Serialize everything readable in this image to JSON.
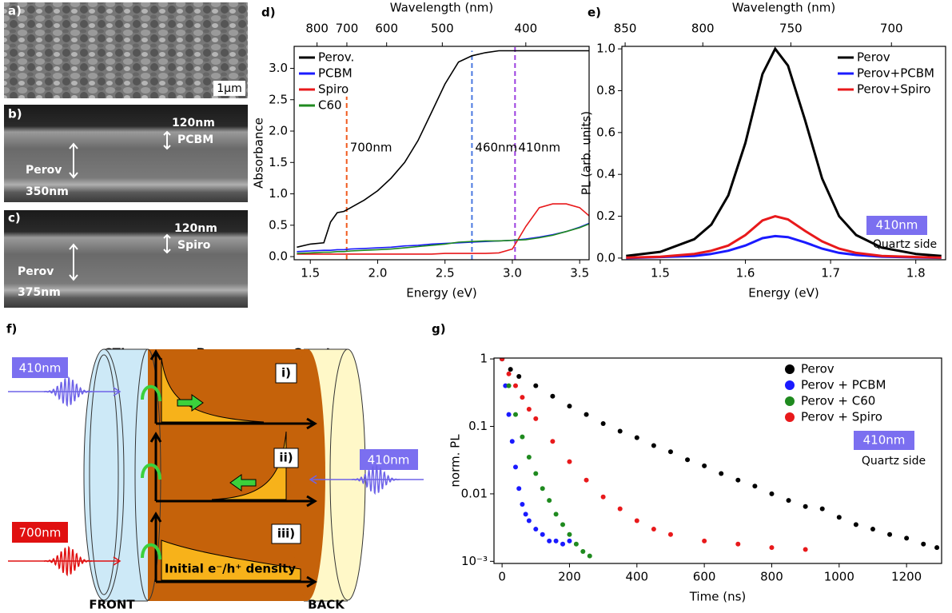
{
  "images": [
    {
      "label": "a)",
      "texts": [
        "1μm"
      ]
    },
    {
      "label": "b)",
      "texts": [
        "120nm",
        "PCBM",
        "Perov",
        "350nm"
      ]
    },
    {
      "label": "c)",
      "texts": [
        "120nm",
        "Spiro",
        "Perov",
        "375nm"
      ]
    }
  ],
  "diagram": {
    "label": "f)",
    "ctl": "CTL",
    "perov": "Perov",
    "quartz": "Quartz",
    "front": "FRONT",
    "back": "BACK",
    "pulses": [
      "410nm",
      "410nm",
      "700nm"
    ],
    "regimes": [
      "i)",
      "ii)",
      "iii)"
    ],
    "density": "Initial e⁻/h⁺ density"
  },
  "chart_data": [
    {
      "type": "line",
      "label": "d)",
      "xlabel": "Energy (eV)",
      "ylabel": "Absorbance",
      "x2label": "Wavelength (nm)",
      "xlim": [
        1.38,
        3.57
      ],
      "ylim": [
        -0.05,
        3.35
      ],
      "xticks": [
        {
          "value": 1.5,
          "label": "1.5"
        },
        {
          "value": 2,
          "label": "2.0"
        },
        2.5,
        {
          "value": 3,
          "label": "3.0"
        },
        3.5
      ],
      "yticks": [
        {
          "value": 0,
          "label": "0.0"
        },
        0.5,
        {
          "value": 1,
          "label": "1.0"
        },
        1.5,
        {
          "value": 2,
          "label": "2.0"
        },
        2.5,
        {
          "value": 3,
          "label": "3.0"
        }
      ],
      "x2ticks": [
        800,
        700,
        600,
        500,
        400
      ],
      "legend": "upper left",
      "x": [
        1.4,
        1.5,
        1.6,
        1.65,
        1.7,
        1.75,
        1.8,
        1.9,
        2.0,
        2.1,
        2.2,
        2.3,
        2.4,
        2.5,
        2.6,
        2.7,
        2.8,
        2.9,
        3.0,
        3.1,
        3.2,
        3.3,
        3.4,
        3.5,
        3.57
      ],
      "series": [
        {
          "name": "Perov.",
          "color": "#000000",
          "values": [
            0.15,
            0.2,
            0.22,
            0.55,
            0.7,
            0.72,
            0.78,
            0.9,
            1.05,
            1.25,
            1.5,
            1.85,
            2.3,
            2.75,
            3.1,
            3.2,
            3.25,
            3.28,
            3.28,
            3.28,
            3.28,
            3.28,
            3.28,
            3.28,
            3.28
          ]
        },
        {
          "name": "PCBM",
          "color": "#1a1aff",
          "values": [
            0.08,
            0.09,
            0.1,
            0.1,
            0.11,
            0.11,
            0.12,
            0.13,
            0.14,
            0.15,
            0.17,
            0.18,
            0.2,
            0.21,
            0.22,
            0.23,
            0.24,
            0.25,
            0.26,
            0.28,
            0.31,
            0.35,
            0.4,
            0.47,
            0.53
          ]
        },
        {
          "name": "Spiro",
          "color": "#e8191b",
          "values": [
            0.04,
            0.04,
            0.04,
            0.04,
            0.04,
            0.04,
            0.04,
            0.04,
            0.04,
            0.04,
            0.04,
            0.04,
            0.04,
            0.05,
            0.05,
            0.05,
            0.05,
            0.06,
            0.12,
            0.48,
            0.78,
            0.84,
            0.84,
            0.78,
            0.65
          ]
        },
        {
          "name": "C60",
          "color": "#1f8a1f",
          "values": [
            0.05,
            0.06,
            0.07,
            0.07,
            0.08,
            0.08,
            0.09,
            0.1,
            0.11,
            0.12,
            0.14,
            0.16,
            0.18,
            0.2,
            0.23,
            0.24,
            0.25,
            0.25,
            0.26,
            0.27,
            0.3,
            0.34,
            0.4,
            0.46,
            0.52
          ]
        }
      ],
      "vlines": [
        {
          "x": 1.77,
          "top": 2.55,
          "label": "700nm",
          "color": "#f05a1e"
        },
        {
          "x": 2.7,
          "top": 3.28,
          "label": "460nm",
          "color": "#4a78e0"
        },
        {
          "x": 3.02,
          "top": 3.35,
          "label": "410nm",
          "color": "#9b3fe0"
        }
      ]
    },
    {
      "type": "line",
      "label": "e)",
      "xlabel": "Energy (eV)",
      "ylabel": "PL (arb. units)",
      "x2label": "Wavelength (nm)",
      "xlim": [
        1.455,
        1.835
      ],
      "ylim": [
        -0.008,
        1.012
      ],
      "xticks": [
        1.5,
        1.6,
        1.7,
        1.8
      ],
      "yticks": [
        {
          "value": 0,
          "label": "0.0"
        },
        0.2,
        0.4,
        0.6,
        0.8,
        {
          "value": 1,
          "label": "1.0"
        }
      ],
      "x2ticks": [
        850,
        800,
        750,
        700
      ],
      "legend": "upper right",
      "x": [
        1.46,
        1.5,
        1.54,
        1.56,
        1.58,
        1.6,
        1.62,
        1.635,
        1.65,
        1.67,
        1.69,
        1.71,
        1.73,
        1.76,
        1.8,
        1.83
      ],
      "series": [
        {
          "name": "Perov",
          "color": "#000000",
          "values": [
            0.01,
            0.03,
            0.09,
            0.16,
            0.3,
            0.55,
            0.88,
            1.0,
            0.92,
            0.66,
            0.38,
            0.2,
            0.11,
            0.05,
            0.02,
            0.01
          ]
        },
        {
          "name": "Perov+PCBM",
          "color": "#1a1aff",
          "values": [
            0.0,
            0.005,
            0.01,
            0.02,
            0.035,
            0.06,
            0.095,
            0.105,
            0.1,
            0.075,
            0.045,
            0.025,
            0.015,
            0.007,
            0.003,
            0.001
          ]
        },
        {
          "name": "Perov+Spiro",
          "color": "#e8191b",
          "values": [
            0.002,
            0.006,
            0.02,
            0.035,
            0.06,
            0.11,
            0.18,
            0.2,
            0.185,
            0.13,
            0.08,
            0.045,
            0.025,
            0.01,
            0.005,
            0.002
          ]
        }
      ],
      "annotations": [
        "410nm",
        "Quartz side"
      ],
      "highlight_color": "#7b6ff0"
    },
    {
      "type": "scatter",
      "label": "g)",
      "xlabel": "Time (ns)",
      "ylabel": "norm. PL",
      "yscale": "log",
      "xlim": [
        -24,
        1304
      ],
      "ylim": [
        0.00093,
        1.03
      ],
      "xticks": [
        0,
        200,
        400,
        600,
        800,
        1000,
        1200
      ],
      "yticks": [
        1,
        0.1,
        0.01,
        {
          "value": 0.001,
          "label": "10⁻³"
        }
      ],
      "legend": "upper right",
      "series": [
        {
          "name": "Perov",
          "color": "#000000",
          "x": [
            0,
            25,
            50,
            100,
            150,
            200,
            250,
            300,
            350,
            400,
            450,
            500,
            550,
            600,
            650,
            700,
            750,
            800,
            850,
            900,
            950,
            1000,
            1050,
            1100,
            1150,
            1200,
            1250,
            1290
          ],
          "values": [
            1,
            0.7,
            0.55,
            0.4,
            0.28,
            0.2,
            0.15,
            0.11,
            0.085,
            0.068,
            0.052,
            0.042,
            0.032,
            0.026,
            0.02,
            0.016,
            0.013,
            0.01,
            0.008,
            0.0065,
            0.006,
            0.0045,
            0.0035,
            0.003,
            0.0025,
            0.0022,
            0.0018,
            0.0016
          ]
        },
        {
          "name": "Perov + PCBM",
          "color": "#1a1aff",
          "x": [
            0,
            10,
            20,
            30,
            40,
            50,
            60,
            70,
            80,
            100,
            120,
            140,
            160,
            180,
            200
          ],
          "values": [
            1,
            0.4,
            0.15,
            0.06,
            0.025,
            0.012,
            0.007,
            0.005,
            0.004,
            0.003,
            0.0025,
            0.002,
            0.002,
            0.0018,
            0.002
          ]
        },
        {
          "name": "Perov + C60",
          "color": "#1f8a1f",
          "x": [
            0,
            20,
            40,
            60,
            80,
            100,
            120,
            140,
            160,
            180,
            200,
            220,
            240,
            260
          ],
          "values": [
            1,
            0.4,
            0.15,
            0.07,
            0.035,
            0.02,
            0.012,
            0.008,
            0.005,
            0.0035,
            0.0025,
            0.0018,
            0.0014,
            0.0012
          ]
        },
        {
          "name": "Perov + Spiro",
          "color": "#e8191b",
          "x": [
            0,
            20,
            40,
            60,
            80,
            100,
            150,
            200,
            250,
            300,
            350,
            400,
            450,
            500,
            600,
            700,
            800,
            900
          ],
          "values": [
            1,
            0.6,
            0.4,
            0.27,
            0.18,
            0.13,
            0.06,
            0.03,
            0.016,
            0.009,
            0.006,
            0.004,
            0.003,
            0.0025,
            0.002,
            0.0018,
            0.0016,
            0.0015
          ]
        }
      ],
      "annotations": [
        "410nm",
        "Quartz side"
      ],
      "highlight_color": "#7b6ff0"
    }
  ]
}
